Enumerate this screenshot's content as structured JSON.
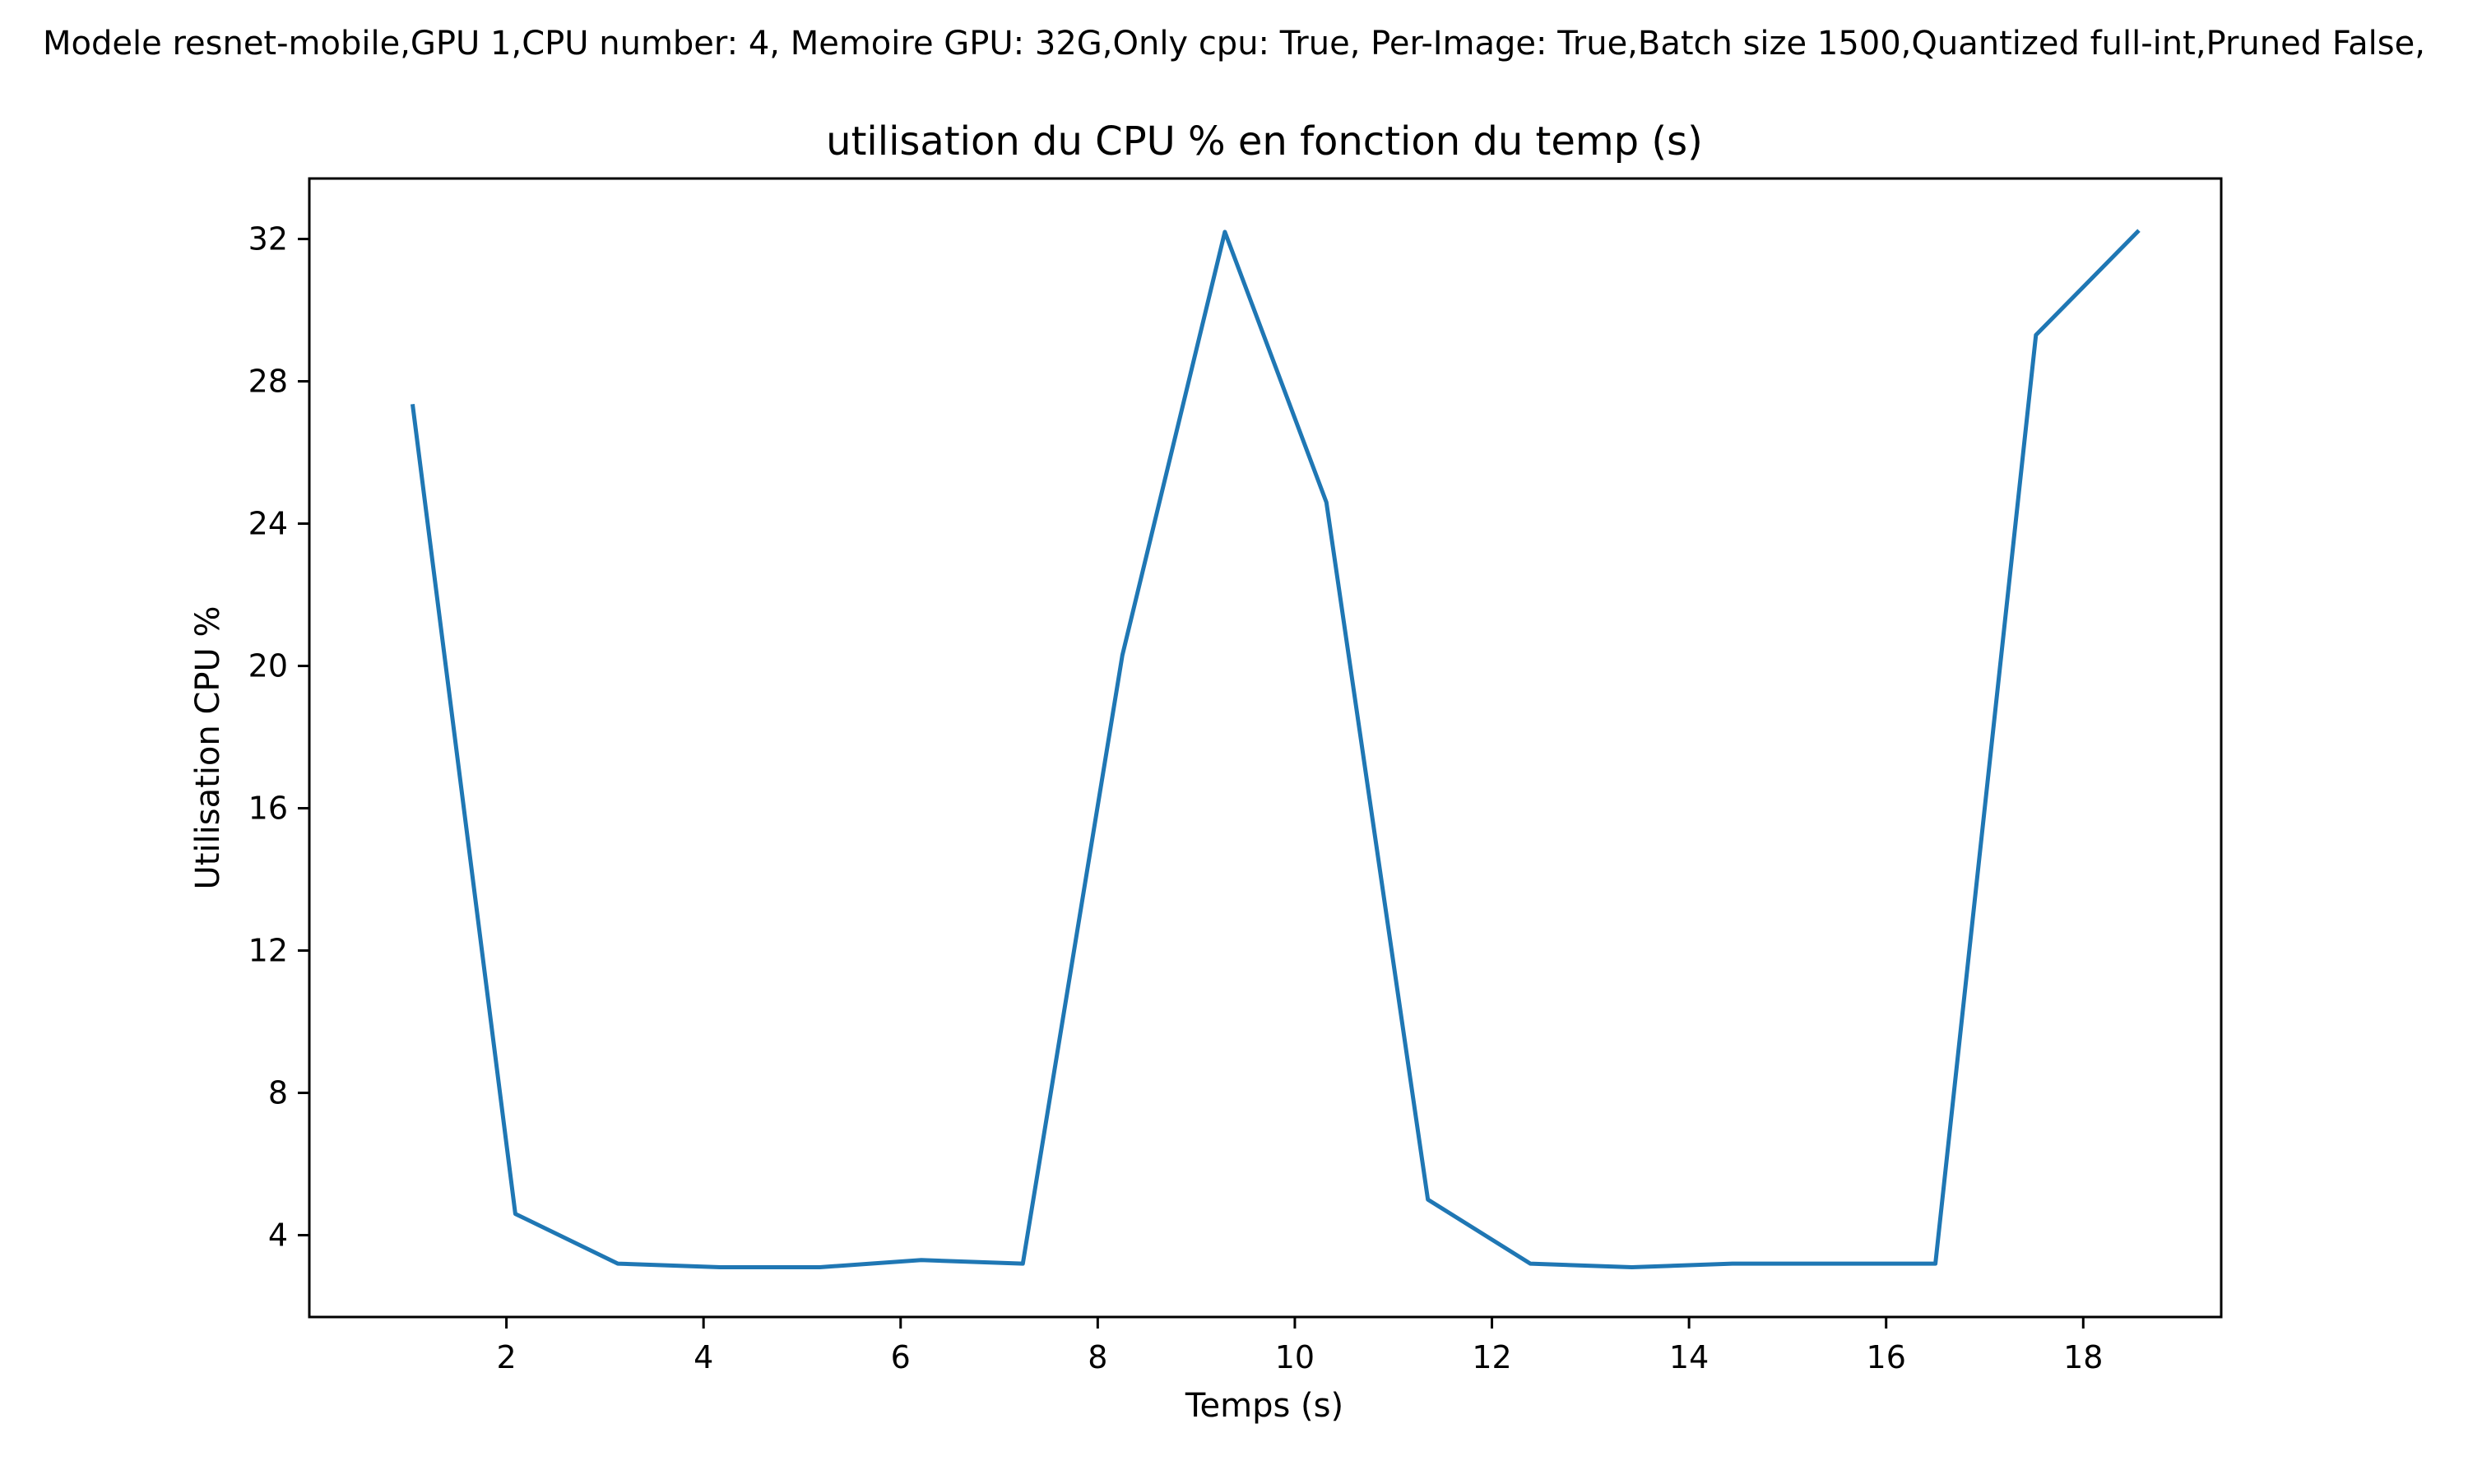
{
  "suptitle": "Modele resnet-mobile,GPU 1,CPU number: 4, Memoire GPU: 32G,Only cpu: True, Per-Image: True,Batch size 1500,Quantized full-int,Pruned False,",
  "chart_data": {
    "type": "line",
    "title": "utilisation du CPU % en fonction du temp (s)",
    "xlabel": "Temps (s)",
    "ylabel": "Utilisation CPU %",
    "xlim": [
      -0.0,
      19.4
    ],
    "ylim": [
      1.7,
      33.7
    ],
    "xticks": [
      2,
      4,
      6,
      8,
      10,
      12,
      14,
      16,
      18
    ],
    "yticks": [
      4,
      8,
      12,
      16,
      20,
      24,
      28,
      32
    ],
    "grid": false,
    "series": [
      {
        "color": "#1f77b4",
        "x": [
          1.05,
          2.09,
          3.13,
          4.17,
          5.18,
          6.21,
          7.24,
          8.25,
          9.29,
          10.32,
          11.35,
          12.39,
          13.42,
          14.44,
          15.47,
          16.5,
          17.52,
          18.55
        ],
        "y": [
          27.3,
          4.6,
          3.2,
          3.1,
          3.1,
          3.3,
          3.2,
          20.3,
          32.2,
          24.6,
          5.0,
          3.2,
          3.1,
          3.2,
          3.2,
          3.2,
          29.3,
          32.2
        ]
      }
    ]
  }
}
